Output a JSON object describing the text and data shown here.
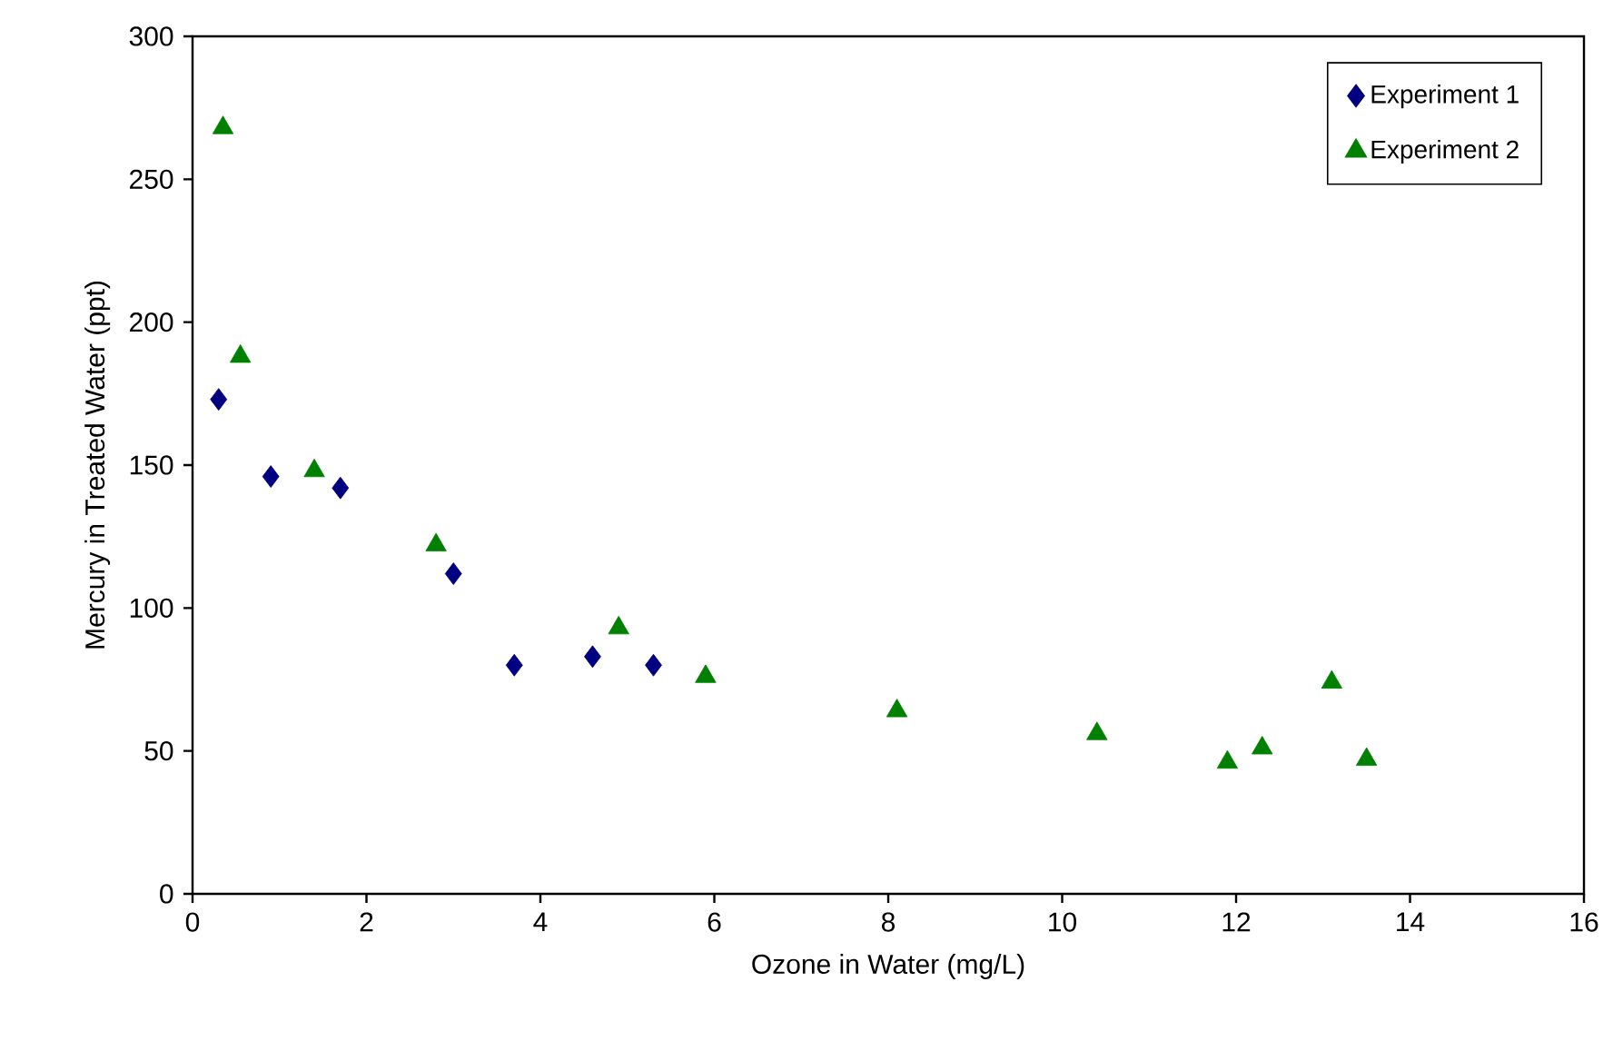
{
  "chart_data": {
    "type": "scatter",
    "xlabel": "Ozone in Water (mg/L)",
    "ylabel": "Mercury in Treated Water (ppt)",
    "xlim": [
      0,
      16
    ],
    "xticks": [
      0,
      2,
      4,
      6,
      8,
      10,
      12,
      14,
      16
    ],
    "ylim": [
      0,
      300
    ],
    "yticks": [
      0,
      50,
      100,
      150,
      200,
      250,
      300
    ],
    "grid": false,
    "legend": "top right",
    "series": [
      {
        "name": "Experiment 1",
        "color": "#000080",
        "marker": "diamond",
        "x": [
          0.3,
          0.9,
          1.7,
          3.0,
          3.7,
          4.6,
          5.3
        ],
        "values": [
          173,
          146,
          142,
          112,
          80,
          83,
          80
        ]
      },
      {
        "name": "Experiment 2",
        "color": "#008000",
        "marker": "triangle",
        "x": [
          0.35,
          0.55,
          1.4,
          2.8,
          4.9,
          5.9,
          8.1,
          10.4,
          11.9,
          12.3,
          13.1,
          13.5
        ],
        "values": [
          268,
          188,
          148,
          122,
          93,
          76,
          64,
          56,
          46,
          51,
          74,
          47
        ]
      }
    ]
  }
}
